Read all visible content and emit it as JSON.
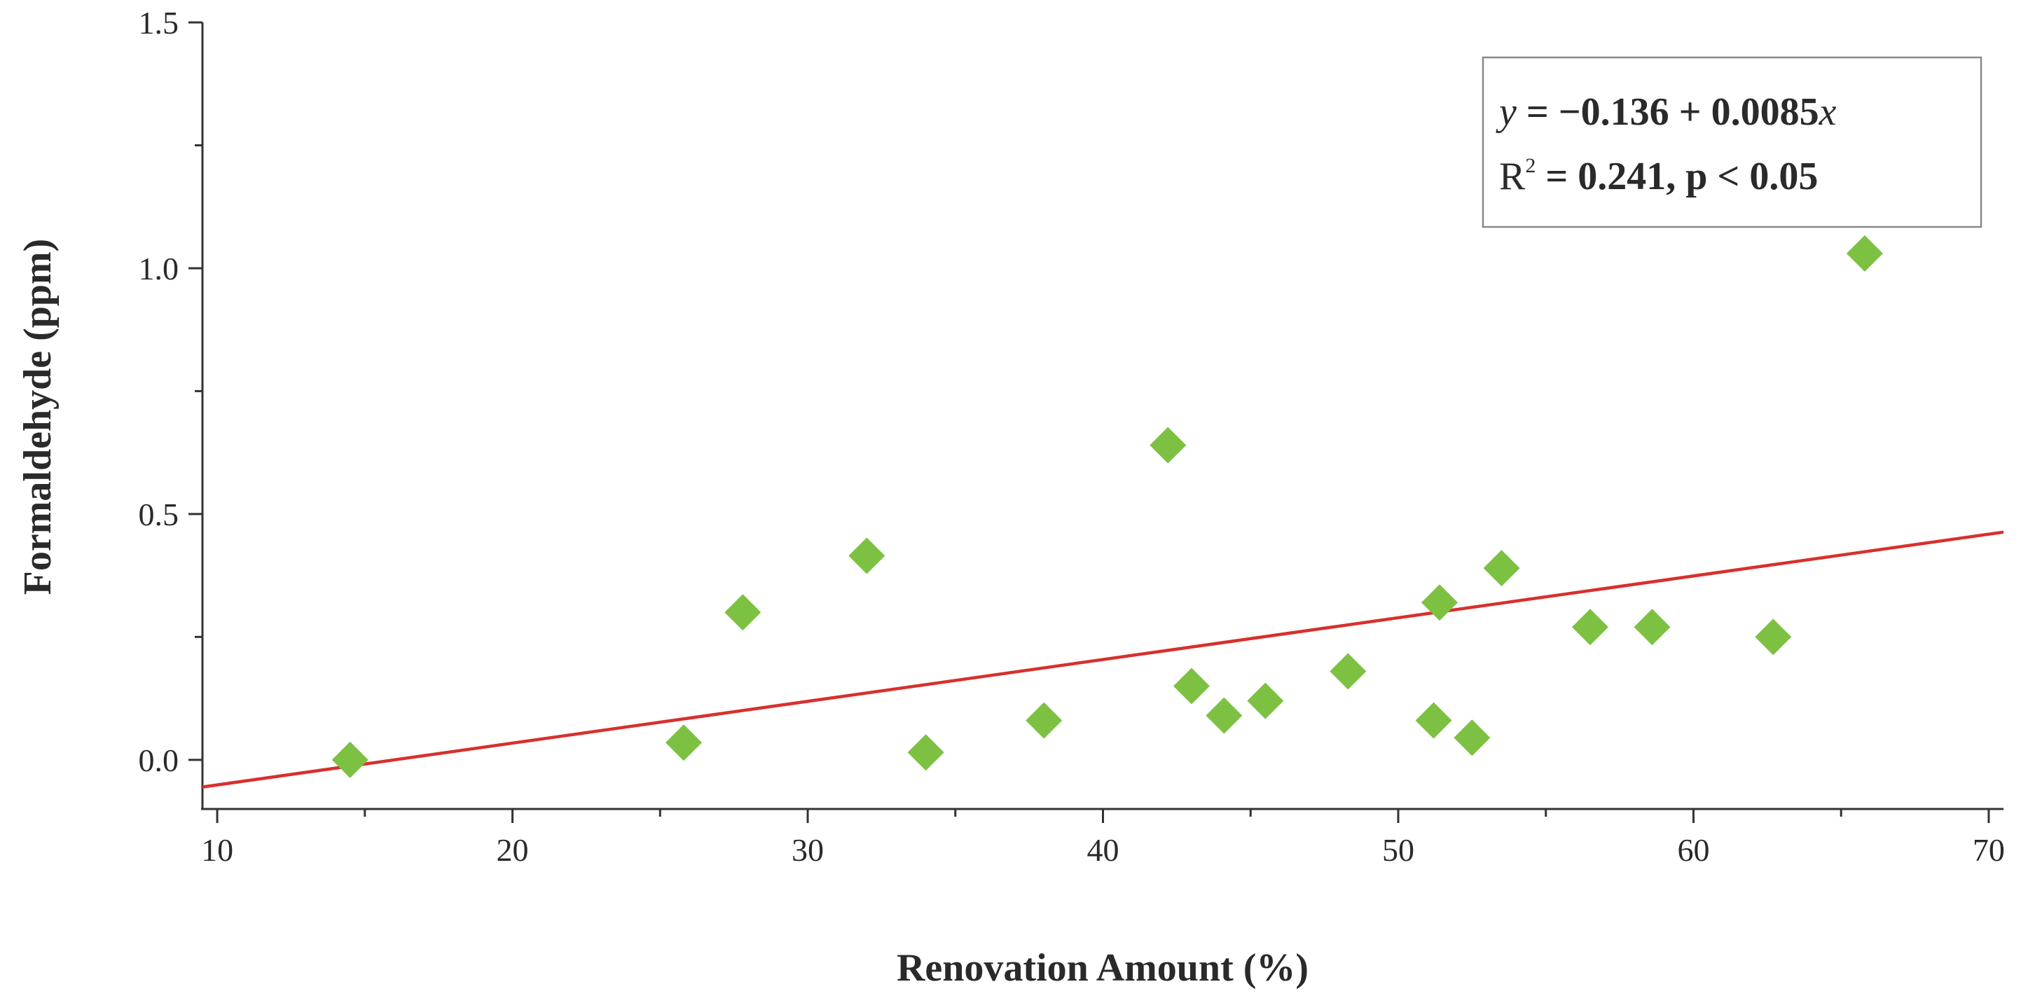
{
  "chart_data": {
    "type": "scatter",
    "title": "",
    "xlabel": "Renovation Amount (%)",
    "ylabel": "Formaldehyde (ppm)",
    "xlim": [
      9.5,
      70.5
    ],
    "ylim": [
      -0.1,
      1.5
    ],
    "xticks": [
      10,
      20,
      30,
      40,
      50,
      60,
      70
    ],
    "xtick_labels": [
      "10",
      "20",
      "30",
      "40",
      "50",
      "60",
      "70"
    ],
    "yticks": [
      0.0,
      0.5,
      1.0,
      1.5
    ],
    "ytick_labels": [
      "0.0",
      "0.5",
      "1.0",
      "1.5"
    ],
    "grid": false,
    "marker": "diamond",
    "marker_color": "#7dc142",
    "line_color": "#d8302c",
    "points": [
      {
        "x": 14.5,
        "y": 0.0
      },
      {
        "x": 25.8,
        "y": 0.035
      },
      {
        "x": 27.8,
        "y": 0.3
      },
      {
        "x": 32.0,
        "y": 0.415
      },
      {
        "x": 34.0,
        "y": 0.015
      },
      {
        "x": 38.0,
        "y": 0.08
      },
      {
        "x": 42.2,
        "y": 0.64
      },
      {
        "x": 43.0,
        "y": 0.15
      },
      {
        "x": 44.1,
        "y": 0.09
      },
      {
        "x": 45.5,
        "y": 0.12
      },
      {
        "x": 48.3,
        "y": 0.18
      },
      {
        "x": 51.2,
        "y": 0.08
      },
      {
        "x": 51.4,
        "y": 0.32
      },
      {
        "x": 52.5,
        "y": 0.045
      },
      {
        "x": 53.5,
        "y": 0.39
      },
      {
        "x": 56.5,
        "y": 0.27
      },
      {
        "x": 58.6,
        "y": 0.27
      },
      {
        "x": 62.7,
        "y": 0.25
      },
      {
        "x": 65.8,
        "y": 1.03
      }
    ],
    "fit_line": {
      "intercept": -0.136,
      "slope": 0.0085,
      "x_range": [
        9.5,
        70.5
      ]
    },
    "annotation": {
      "eq_y": "y",
      "eq_rest": " = −0.136 + 0.0085",
      "eq_x": "x",
      "r2_prefix": "R",
      "r2_sup": "2",
      "r2_rest": " = 0.241, p < 0.05"
    }
  }
}
